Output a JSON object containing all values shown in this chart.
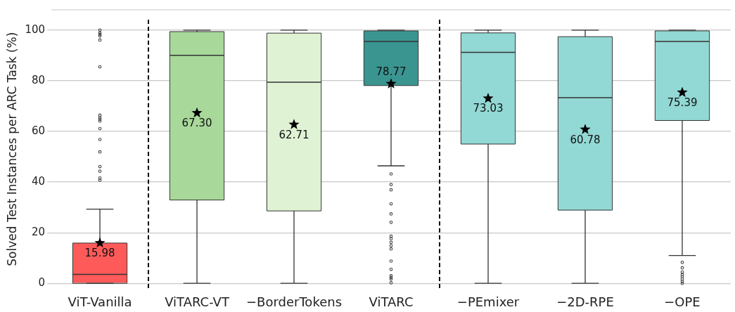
{
  "chart_data": {
    "type": "box",
    "ylabel": "Solved Test Instances per ARC Task (%)",
    "categories": [
      "ViT-Vanilla",
      "ViTARC-VT",
      "−BorderTokens",
      "ViTARC",
      "−PEmixer",
      "−2D-RPE",
      "−OPE"
    ],
    "colors": [
      "#ff5a5a",
      "#a8d89a",
      "#dff2d4",
      "#3a9591",
      "#92d8d4",
      "#92d8d4",
      "#92d8d4"
    ],
    "boxes": [
      {
        "low": 0,
        "q1": 0,
        "median": 3.5,
        "q3": 15.9,
        "high": 29.3,
        "mean": 15.98,
        "outliers": [
          100,
          98.9,
          98.3,
          97.7,
          96.1,
          85.5,
          66.4,
          65.5,
          64.8,
          64.1,
          61.1,
          56.8,
          51.9,
          46.1,
          44.3,
          41.6,
          40.7
        ]
      },
      {
        "low": 0,
        "q1": 32.9,
        "median": 90.0,
        "q3": 99.4,
        "high": 100,
        "mean": 67.3
      },
      {
        "low": 0,
        "q1": 28.6,
        "median": 79.4,
        "q3": 98.8,
        "high": 100,
        "mean": 62.71
      },
      {
        "low": 46.4,
        "q1": 78.1,
        "median": 95.5,
        "q3": 99.7,
        "high": 100,
        "mean": 78.77,
        "outliers": [
          43.2,
          39.0,
          36.9,
          31.4,
          27.4,
          24.1,
          18.6,
          17.6,
          16.2,
          14.9,
          13.6,
          8.8,
          5.5,
          3.0,
          2.3,
          1.7,
          0.2
        ]
      },
      {
        "low": 0,
        "q1": 55.0,
        "median": 91.2,
        "q3": 98.9,
        "high": 100,
        "mean": 73.03
      },
      {
        "low": 0,
        "q1": 28.9,
        "median": 73.3,
        "q3": 97.4,
        "high": 100,
        "mean": 60.78
      },
      {
        "low": 11.0,
        "q1": 64.3,
        "median": 95.5,
        "q3": 99.7,
        "high": 100,
        "mean": 75.39,
        "outliers": [
          8.3,
          6.1,
          4.5,
          3.4,
          2.6,
          1.7,
          0.8,
          0
        ]
      }
    ],
    "annotations": [
      "15.98",
      "67.30",
      "62.71",
      "78.77",
      "73.03",
      "60.78",
      "75.39"
    ],
    "ylim": [
      -2,
      108
    ],
    "yticks": [
      0,
      20,
      40,
      60,
      80,
      100
    ],
    "grid": "y",
    "legend": false,
    "marker": "star"
  }
}
